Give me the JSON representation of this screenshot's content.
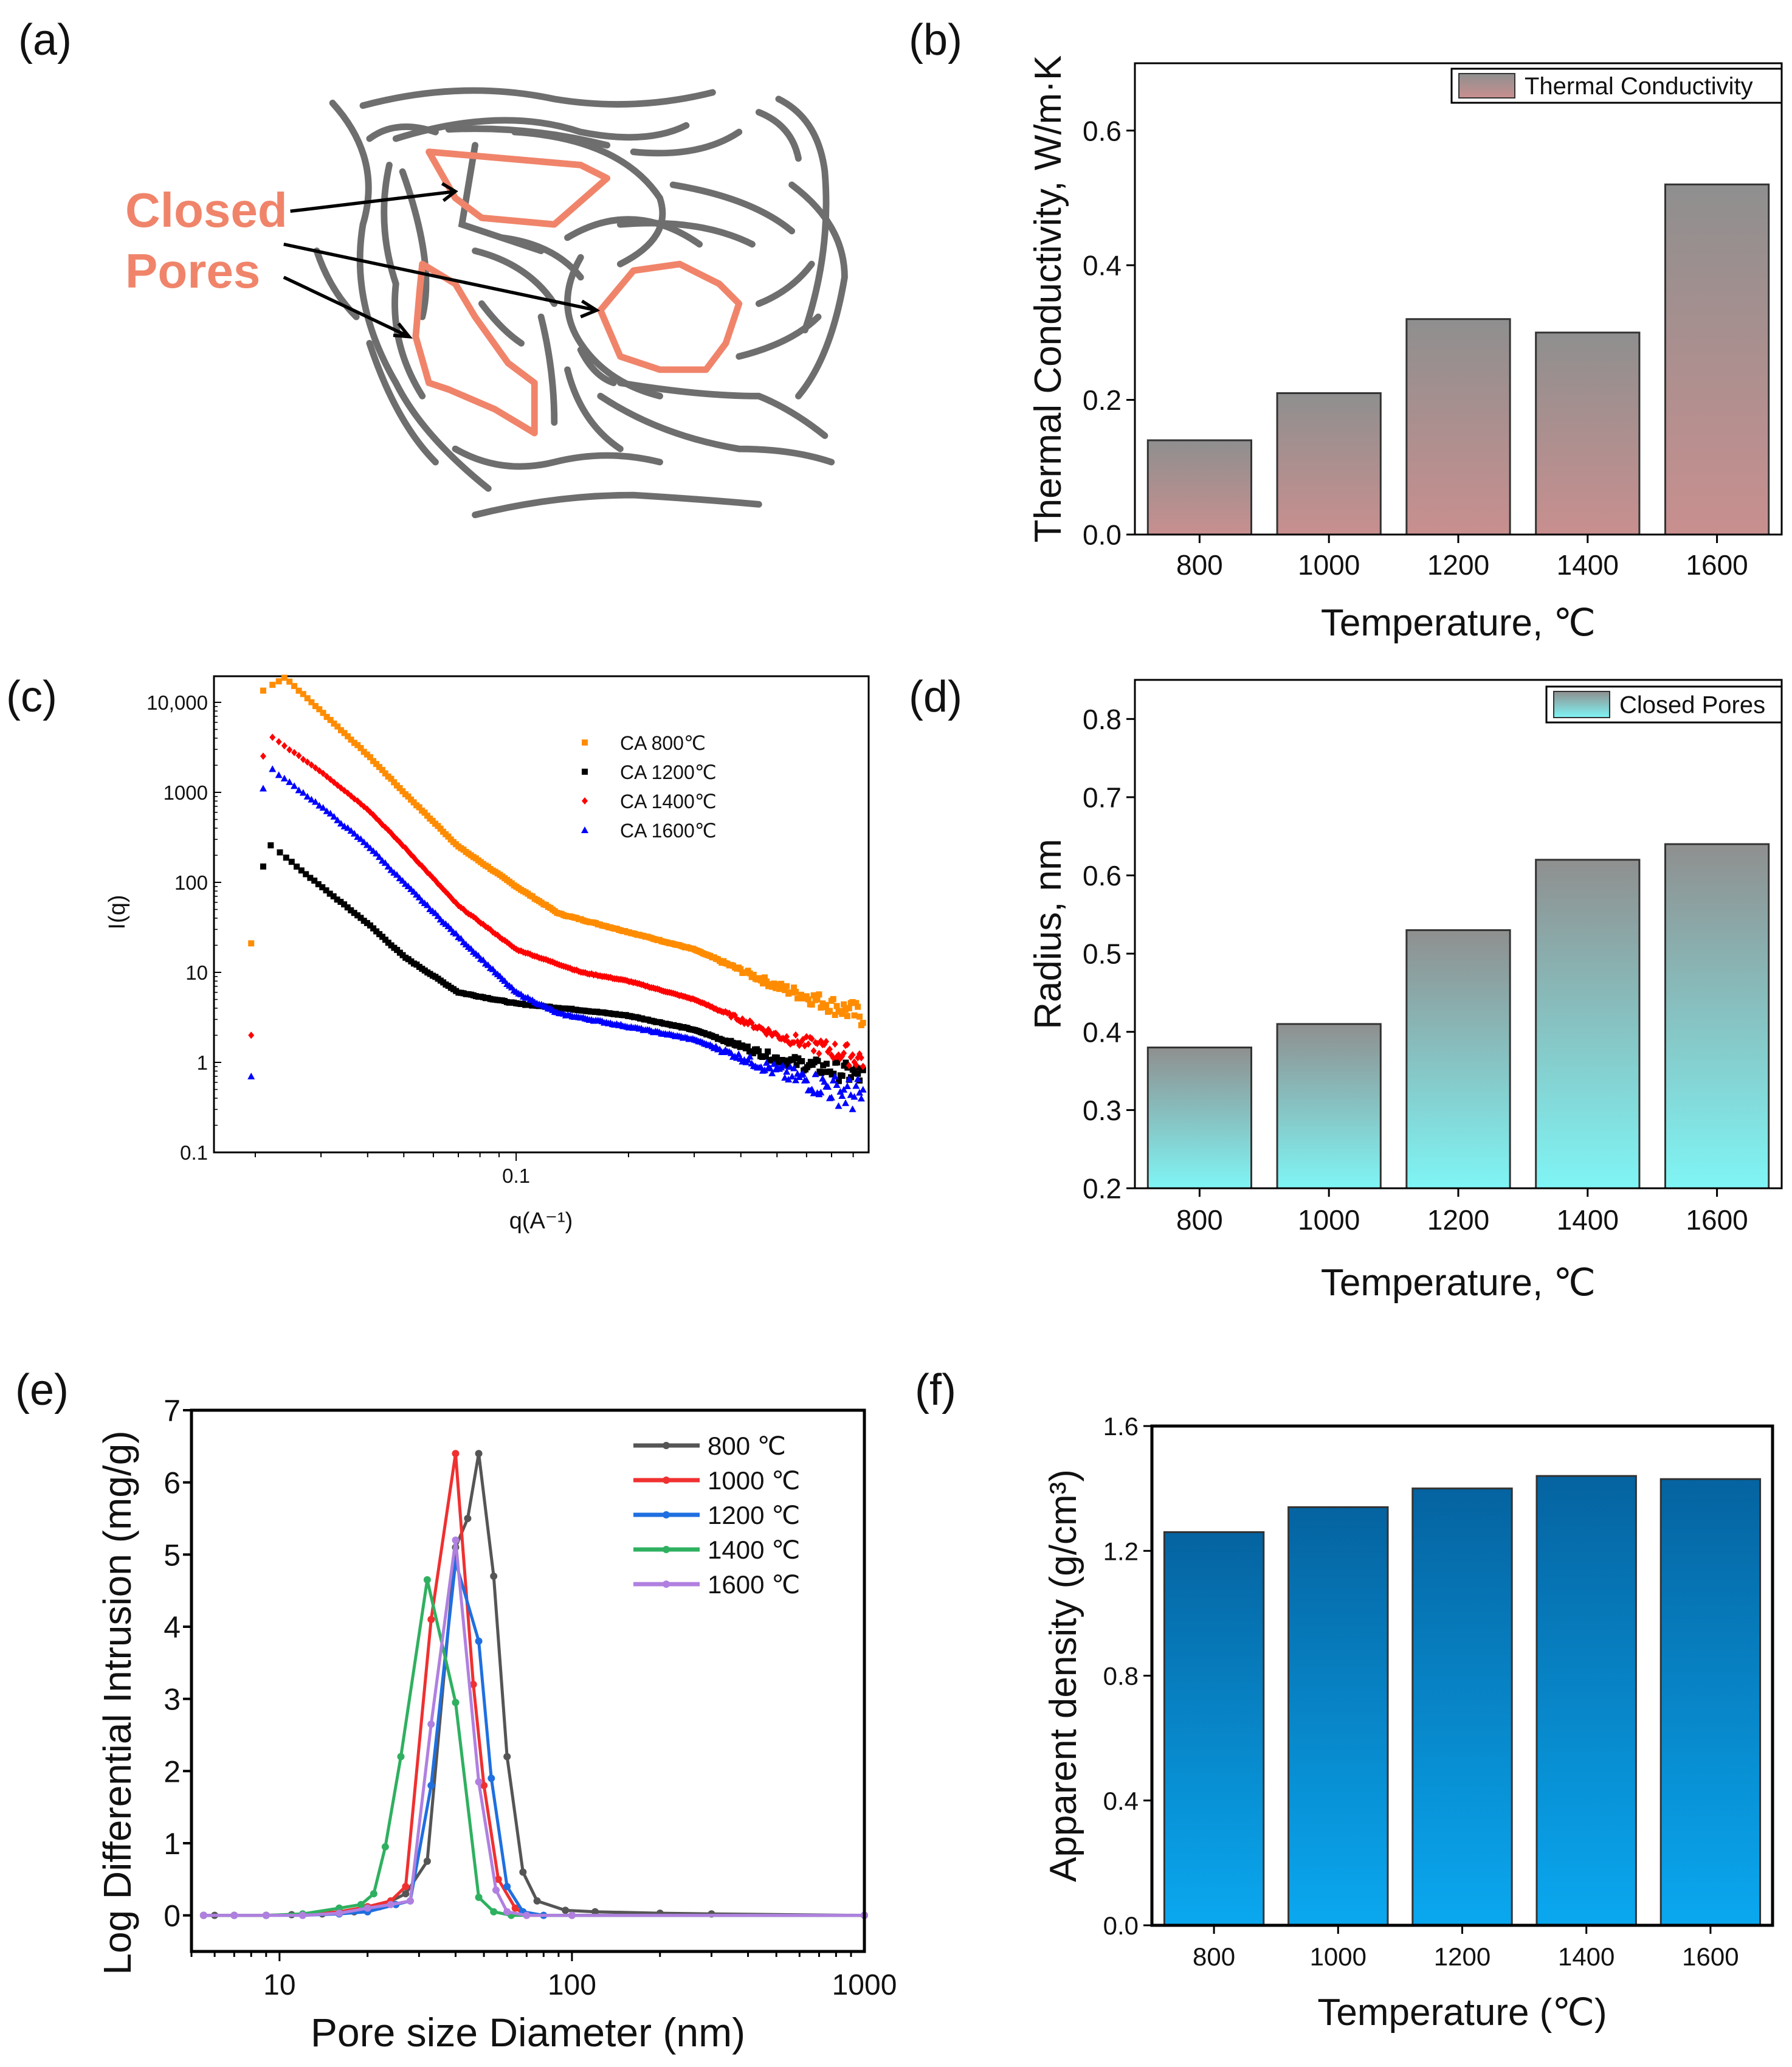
{
  "panel_labels": {
    "a": "(a)",
    "b": "(b)",
    "c": "(c)",
    "d": "(d)",
    "e": "(e)",
    "f": "(f)"
  },
  "diagram_a": {
    "label_line1": "Closed",
    "label_line2": "Pores",
    "pore_color": "#f0846a",
    "fiber_color": "#6e6e6e"
  },
  "chart_data": [
    {
      "id": "b",
      "type": "bar",
      "title": "",
      "categories": [
        "800",
        "1000",
        "1200",
        "1400",
        "1600"
      ],
      "values": [
        0.14,
        0.21,
        0.32,
        0.3,
        0.52
      ],
      "xlabel": "Temperature, ℃",
      "ylabel": "Thermal Conductivity, W/m·K",
      "ylim": [
        0,
        0.7
      ],
      "yticks": [
        "0.0",
        "0.2",
        "0.4",
        "0.6"
      ],
      "legend": "Thermal Conductivity",
      "legend_position": "top-right",
      "colors": {
        "top": "#8f8f8f",
        "bottom": "#c98f8f"
      }
    },
    {
      "id": "c",
      "type": "scatter",
      "xscale": "log",
      "yscale": "log",
      "xlabel": "q(A⁻¹)",
      "ylabel": "I(q)",
      "xlim": [
        0.0155,
        0.88
      ],
      "ylim": [
        0.1,
        19500
      ],
      "xticks": [
        "0.1"
      ],
      "yticks": [
        "0.1",
        "1",
        "10",
        "100",
        "1000",
        "10,000"
      ],
      "legend_position": "top-right",
      "series": [
        {
          "name": "CA 800℃",
          "color": "#ff8c00",
          "marker": "square",
          "outlier": [
            0.0195,
            21
          ],
          "points": [
            [
              0.021,
              13500
            ],
            [
              0.024,
              19000
            ],
            [
              0.03,
              8000
            ],
            [
              0.04,
              2600
            ],
            [
              0.05,
              1000
            ],
            [
              0.07,
              250
            ],
            [
              0.1,
              90
            ],
            [
              0.13,
              45
            ],
            [
              0.2,
              28
            ],
            [
              0.3,
              18
            ],
            [
              0.5,
              7
            ],
            [
              0.85,
              3.3
            ]
          ]
        },
        {
          "name": "CA 1200℃",
          "color": "#000000",
          "marker": "square",
          "outlier": [
            0.021,
            150
          ],
          "points": [
            [
              0.022,
              260
            ],
            [
              0.03,
              90
            ],
            [
              0.04,
              35
            ],
            [
              0.05,
              15
            ],
            [
              0.07,
              6
            ],
            [
              0.1,
              4.5
            ],
            [
              0.15,
              3.8
            ],
            [
              0.2,
              3.3
            ],
            [
              0.3,
              2.3
            ],
            [
              0.5,
              1.1
            ],
            [
              0.85,
              0.7
            ]
          ]
        },
        {
          "name": "CA 1400℃",
          "color": "#ff0000",
          "marker": "diamond",
          "outlier": [
            0.0195,
            2
          ],
          "points": [
            [
              0.021,
              2500
            ],
            [
              0.022,
              4200
            ],
            [
              0.03,
              1700
            ],
            [
              0.04,
              650
            ],
            [
              0.05,
              250
            ],
            [
              0.07,
              55
            ],
            [
              0.1,
              18
            ],
            [
              0.15,
              10
            ],
            [
              0.2,
              8
            ],
            [
              0.3,
              5
            ],
            [
              0.5,
              2
            ],
            [
              0.85,
              1.1
            ]
          ]
        },
        {
          "name": "CA 1600℃",
          "color": "#0000ff",
          "marker": "triangle",
          "outlier": [
            0.0195,
            0.7
          ],
          "points": [
            [
              0.021,
              1100
            ],
            [
              0.022,
              1850
            ],
            [
              0.03,
              700
            ],
            [
              0.04,
              260
            ],
            [
              0.05,
              100
            ],
            [
              0.07,
              25
            ],
            [
              0.1,
              6
            ],
            [
              0.13,
              3.5
            ],
            [
              0.2,
              2.5
            ],
            [
              0.3,
              1.8
            ],
            [
              0.5,
              0.8
            ],
            [
              0.85,
              0.4
            ]
          ]
        }
      ]
    },
    {
      "id": "d",
      "type": "bar",
      "categories": [
        "800",
        "1000",
        "1200",
        "1400",
        "1600"
      ],
      "values": [
        0.38,
        0.41,
        0.53,
        0.62,
        0.64
      ],
      "xlabel": "Temperature, ℃",
      "ylabel": "Radius, nm",
      "ylim": [
        0.2,
        0.85
      ],
      "yticks": [
        "0.2",
        "0.3",
        "0.4",
        "0.5",
        "0.6",
        "0.7",
        "0.8"
      ],
      "legend": "Closed Pores",
      "legend_position": "top-right",
      "colors": {
        "top": "#8f8f8f",
        "bottom": "#7ff5f5"
      }
    },
    {
      "id": "e",
      "type": "line",
      "xscale": "log",
      "xlabel": "Pore size Diameter (nm)",
      "ylabel": "Log Differential Intrusion (mg/g)",
      "xlim": [
        5,
        1000
      ],
      "ylim": [
        -0.5,
        7
      ],
      "xticks": [
        "10",
        "100",
        "1000"
      ],
      "yticks": [
        "0",
        "1",
        "2",
        "3",
        "4",
        "5",
        "6",
        "7"
      ],
      "legend_position": "top-right",
      "series": [
        {
          "name": "800 ℃",
          "color": "#555555",
          "points": [
            [
              5.5,
              0
            ],
            [
              6,
              0
            ],
            [
              7,
              0
            ],
            [
              9,
              0
            ],
            [
              11,
              0.01
            ],
            [
              14,
              0.02
            ],
            [
              18,
              0.05
            ],
            [
              22,
              0.12
            ],
            [
              27,
              0.3
            ],
            [
              32,
              0.75
            ],
            [
              40,
              5.1
            ],
            [
              44,
              5.5
            ],
            [
              48,
              6.4
            ],
            [
              54,
              4.7
            ],
            [
              60,
              2.2
            ],
            [
              68,
              0.6
            ],
            [
              76,
              0.2
            ],
            [
              95,
              0.07
            ],
            [
              120,
              0.05
            ],
            [
              200,
              0.03
            ],
            [
              300,
              0.02
            ],
            [
              1000,
              0
            ]
          ]
        },
        {
          "name": "1000 ℃",
          "color": "#f03030",
          "points": [
            [
              5.5,
              0
            ],
            [
              7,
              0
            ],
            [
              9,
              0
            ],
            [
              12,
              0.01
            ],
            [
              16,
              0.05
            ],
            [
              20,
              0.12
            ],
            [
              24,
              0.2
            ],
            [
              27,
              0.4
            ],
            [
              33,
              4.1
            ],
            [
              40,
              6.4
            ],
            [
              46,
              3.2
            ],
            [
              50,
              1.8
            ],
            [
              56,
              0.5
            ],
            [
              64,
              0.1
            ],
            [
              70,
              0
            ],
            [
              100,
              0
            ],
            [
              1000,
              0
            ]
          ]
        },
        {
          "name": "1200 ℃",
          "color": "#1f6fe0",
          "points": [
            [
              5.5,
              0
            ],
            [
              7,
              0
            ],
            [
              9,
              0
            ],
            [
              12,
              0
            ],
            [
              16,
              0.02
            ],
            [
              20,
              0.05
            ],
            [
              25,
              0.15
            ],
            [
              28,
              0.2
            ],
            [
              33,
              1.8
            ],
            [
              40,
              4.9
            ],
            [
              48,
              3.8
            ],
            [
              53,
              1.9
            ],
            [
              60,
              0.4
            ],
            [
              68,
              0.05
            ],
            [
              80,
              0
            ],
            [
              1000,
              0
            ]
          ]
        },
        {
          "name": "1400 ℃",
          "color": "#2fb060",
          "points": [
            [
              5.5,
              0
            ],
            [
              7,
              0
            ],
            [
              9,
              0
            ],
            [
              12,
              0.02
            ],
            [
              16,
              0.1
            ],
            [
              19,
              0.15
            ],
            [
              21,
              0.3
            ],
            [
              23,
              0.95
            ],
            [
              26,
              2.2
            ],
            [
              32,
              4.65
            ],
            [
              40,
              2.95
            ],
            [
              48,
              0.25
            ],
            [
              54,
              0.05
            ],
            [
              62,
              0
            ],
            [
              100,
              0
            ],
            [
              1000,
              0
            ]
          ]
        },
        {
          "name": "1600 ℃",
          "color": "#b080e0",
          "points": [
            [
              5.5,
              0
            ],
            [
              7,
              0
            ],
            [
              9,
              0
            ],
            [
              12,
              0
            ],
            [
              16,
              0.03
            ],
            [
              20,
              0.1
            ],
            [
              24,
              0.15
            ],
            [
              28,
              0.2
            ],
            [
              33,
              2.65
            ],
            [
              40,
              5.2
            ],
            [
              48,
              1.85
            ],
            [
              55,
              0.35
            ],
            [
              60,
              0.05
            ],
            [
              70,
              0
            ],
            [
              100,
              0
            ],
            [
              1000,
              0
            ]
          ]
        }
      ]
    },
    {
      "id": "f",
      "type": "bar",
      "categories": [
        "800",
        "1000",
        "1200",
        "1400",
        "1600"
      ],
      "values": [
        1.26,
        1.34,
        1.4,
        1.44,
        1.43
      ],
      "xlabel": "Temperature (℃)",
      "ylabel": "Apparent density  (g/cm³)",
      "ylim": [
        0,
        1.6
      ],
      "yticks": [
        "0.0",
        "0.4",
        "0.8",
        "1.2",
        "1.6"
      ],
      "colors": {
        "top": "#0563a0",
        "bottom": "#0aa8f0"
      }
    }
  ]
}
